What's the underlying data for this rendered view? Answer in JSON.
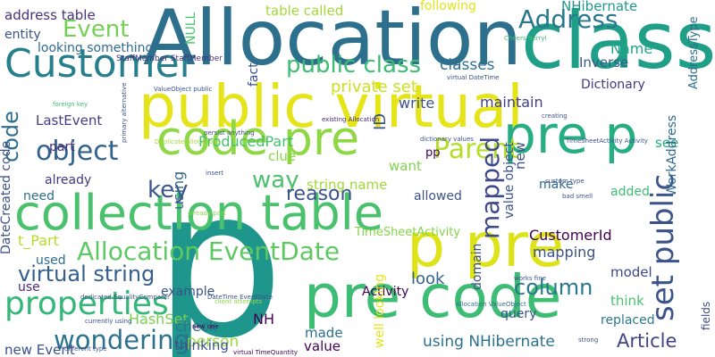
{
  "words": [
    {
      "text": "p",
      "color": "#1f968b"
    },
    {
      "text": "public virtual",
      "color": "#e5e419"
    },
    {
      "text": "Allocation",
      "color": "#2d708e"
    },
    {
      "text": "collection table",
      "color": "#4ac16d"
    },
    {
      "text": "pre code",
      "color": "#3dbc74"
    },
    {
      "text": "class",
      "color": "#1f9f88"
    },
    {
      "text": "Customer",
      "color": "#277f8e"
    },
    {
      "text": "code pre",
      "color": "#8fd744"
    },
    {
      "text": "pre p",
      "color": "#26ad81"
    },
    {
      "text": "p pre",
      "color": "#dde318"
    },
    {
      "text": "Allocation EventDate",
      "color": "#5ec962"
    },
    {
      "text": "properties",
      "color": "#35b779"
    },
    {
      "text": "set public",
      "color": "#3b528b"
    },
    {
      "text": "public class",
      "color": "#3dbc74"
    },
    {
      "text": "Address",
      "color": "#2a788e"
    },
    {
      "text": "wondering",
      "color": "#2c728e"
    },
    {
      "text": "Event",
      "color": "#75d054"
    },
    {
      "text": "Parent",
      "color": "#b5de2b"
    },
    {
      "text": "object",
      "color": "#33638d"
    },
    {
      "text": "code",
      "color": "#2e6e8e"
    },
    {
      "text": "virtual string",
      "color": "#355f8d"
    },
    {
      "text": "key",
      "color": "#39558c"
    },
    {
      "text": "mapped",
      "color": "#3e4989"
    },
    {
      "text": "column",
      "color": "#2a788e"
    },
    {
      "text": "way",
      "color": "#4ac16d"
    },
    {
      "text": "reason",
      "color": "#3b528b"
    },
    {
      "text": "using NHibernate",
      "color": "#2c728e"
    },
    {
      "text": "Article",
      "color": "#414487"
    },
    {
      "text": "address table",
      "color": "#46327e"
    },
    {
      "text": "table called",
      "color": "#a2da37"
    },
    {
      "text": "NHibernate",
      "color": "#1f988b"
    },
    {
      "text": "following",
      "color": "#e1e319"
    },
    {
      "text": "Name",
      "color": "#20a386"
    },
    {
      "text": "Inverse",
      "color": "#375a8c"
    },
    {
      "text": "private set",
      "color": "#cae11f"
    },
    {
      "text": "maintain",
      "color": "#433e85"
    },
    {
      "text": "Dictionary",
      "color": "#443a83"
    },
    {
      "text": "classes",
      "color": "#2e6e8e"
    },
    {
      "text": "write",
      "color": "#3b528b"
    },
    {
      "text": "LastEvent",
      "color": "#433e85"
    },
    {
      "text": "entity",
      "color": "#3b528b"
    },
    {
      "text": "looking something",
      "color": "#306a8e"
    },
    {
      "text": "ProducedPart",
      "color": "#44bf70"
    },
    {
      "text": "using",
      "color": "#32658e"
    },
    {
      "text": "part",
      "color": "#472d7b"
    },
    {
      "text": "already",
      "color": "#453781"
    },
    {
      "text": "need",
      "color": "#2e6e8e"
    },
    {
      "text": "fact",
      "color": "#3b528b"
    },
    {
      "text": "clue",
      "color": "#8bd646"
    },
    {
      "text": "want",
      "color": "#7fd34e"
    },
    {
      "text": "allowed",
      "color": "#3b528b"
    },
    {
      "text": "make",
      "color": "#31688e"
    },
    {
      "text": "added",
      "color": "#3dbc74"
    },
    {
      "text": "see",
      "color": "#25ac82"
    },
    {
      "text": "string name",
      "color": "#a0da39"
    },
    {
      "text": "TimeSheetActivity",
      "color": "#84d44b"
    },
    {
      "text": "CustomerId",
      "color": "#440154"
    },
    {
      "text": "mapping",
      "color": "#3b528b"
    },
    {
      "text": "model",
      "color": "#3e4989"
    },
    {
      "text": "think",
      "color": "#4ac16d"
    },
    {
      "text": "look",
      "color": "#32648e"
    },
    {
      "text": "domain",
      "color": "#3b528b"
    },
    {
      "text": "query",
      "color": "#3b528b"
    },
    {
      "text": "Activity",
      "color": "#440154"
    },
    {
      "text": "DateCreated code",
      "color": "#3b528b"
    },
    {
      "text": "t_Part",
      "color": "#b5de2b"
    },
    {
      "text": "used",
      "color": "#2e6e8e"
    },
    {
      "text": "use",
      "color": "#482878"
    },
    {
      "text": "example",
      "color": "#3b528b"
    },
    {
      "text": "HashSet",
      "color": "#7ad151"
    },
    {
      "text": "check",
      "color": "#2e6e8e"
    },
    {
      "text": "NH",
      "color": "#440154"
    },
    {
      "text": "person",
      "color": "#9bd93c"
    },
    {
      "text": "thinking",
      "color": "#3b528b"
    },
    {
      "text": "new Event",
      "color": "#3b528b"
    },
    {
      "text": "made",
      "color": "#2e6e8e"
    },
    {
      "text": "value",
      "color": "#440154"
    },
    {
      "text": "replaced",
      "color": "#2a788e"
    },
    {
      "text": "ID",
      "color": "#3b528b"
    },
    {
      "text": "AddressType",
      "color": "#2e6e8e"
    },
    {
      "text": "WorkAddress",
      "color": "#31688e"
    },
    {
      "text": "fields",
      "color": "#3e4989"
    },
    {
      "text": "well looking",
      "color": "#e5e419"
    },
    {
      "text": "new",
      "color": "#3b528b"
    },
    {
      "text": "value object",
      "color": "#3b528b"
    },
    {
      "text": "pp",
      "color": "#440154"
    },
    {
      "text": "NULL",
      "color": "#4ac16d"
    },
    {
      "text": "StaffMember StaffMember",
      "color": "#472d7b"
    },
    {
      "text": "ValueObject public",
      "color": "#3b528b"
    },
    {
      "text": "Allocation ValueObject",
      "color": "#2e6e8e"
    },
    {
      "text": "dictionary values",
      "color": "#3b528b"
    },
    {
      "text": "virtual DateTime",
      "color": "#3b528b"
    },
    {
      "text": "existing Allocation",
      "color": "#482878"
    },
    {
      "text": "TimeSheetActivity Activity",
      "color": "#3b528b"
    },
    {
      "text": "foreign key",
      "color": "#3dbc74"
    },
    {
      "text": "primary alternative",
      "color": "#3b528b"
    },
    {
      "text": "Duplicate allocations",
      "color": "#a2da37"
    },
    {
      "text": "persist anything",
      "color": "#3b528b"
    },
    {
      "text": "DateTime EventDate",
      "color": "#3b528b"
    },
    {
      "text": "client attempts",
      "color": "#8fd744"
    },
    {
      "text": "dedicated EqualityComparer",
      "color": "#3b528b"
    },
    {
      "text": "currently using",
      "color": "#3b528b"
    },
    {
      "text": "different type",
      "color": "#3b528b"
    },
    {
      "text": "virtual TimeQuantity",
      "color": "#440154"
    },
    {
      "text": "works fine",
      "color": "#3b528b"
    },
    {
      "text": "bad smell",
      "color": "#3b528b"
    },
    {
      "text": "custom type",
      "color": "#3b528b"
    },
    {
      "text": "Cheers Berryl",
      "color": "#3dbc74"
    },
    {
      "text": "already part",
      "color": "#8fd744"
    },
    {
      "text": "new one",
      "color": "#440154"
    },
    {
      "text": "strong",
      "color": "#3b528b"
    },
    {
      "text": "creating",
      "color": "#3b528b"
    },
    {
      "text": "insert",
      "color": "#3b528b"
    }
  ]
}
